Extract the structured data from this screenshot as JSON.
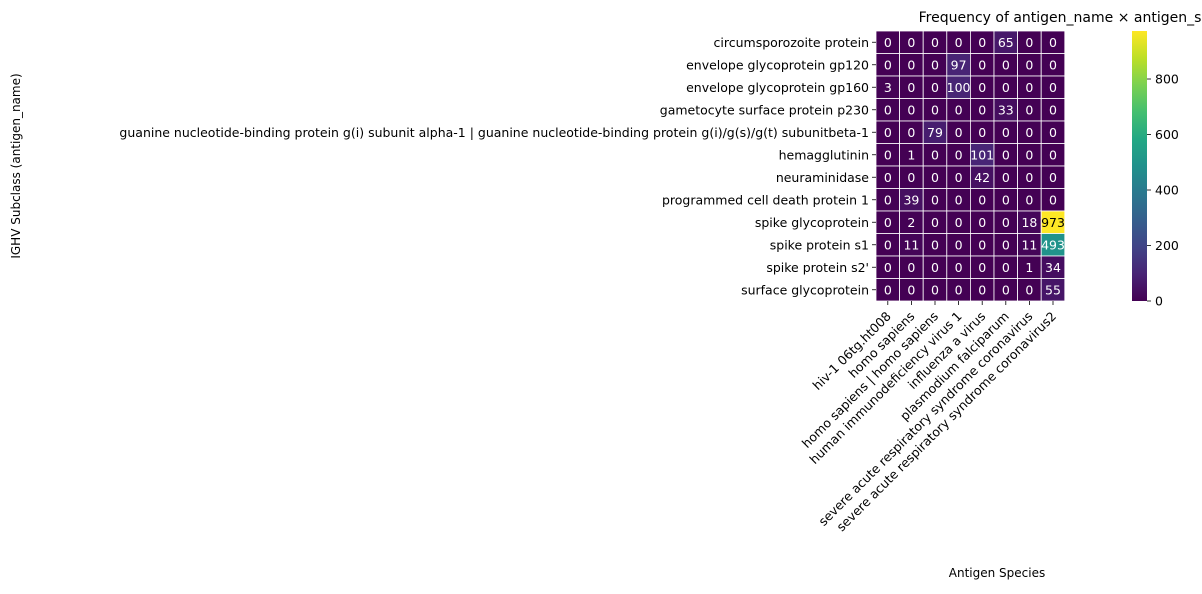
{
  "chart_data": {
    "type": "heatmap",
    "title": "Frequency of antigen_name × antigen_species",
    "xlabel": "Antigen Species",
    "ylabel": "IGHV Subclass (antigen_name)",
    "x_categories": [
      "hiv-1 06tg.ht008",
      "homo sapiens",
      "homo sapiens | homo sapiens",
      "human immunodeficiency virus 1",
      "influenza a virus",
      "plasmodium falciparum",
      "severe acute respiratory syndrome coronavirus",
      "severe acute respiratory syndrome coronavirus2"
    ],
    "y_categories": [
      "circumsporozoite protein",
      "envelope glycoprotein gp120",
      "envelope glycoprotein gp160",
      "gametocyte surface protein p230",
      "guanine nucleotide-binding protein g(i) subunit alpha-1 | guanine nucleotide-binding protein g(i)/g(s)/g(t) subunitbeta-1",
      "hemagglutinin",
      "neuraminidase",
      "programmed cell death protein 1",
      "spike glycoprotein",
      "spike protein s1",
      "spike protein s2'",
      "surface glycoprotein"
    ],
    "values": [
      [
        0,
        0,
        0,
        0,
        0,
        65,
        0,
        0
      ],
      [
        0,
        0,
        0,
        97,
        0,
        0,
        0,
        0
      ],
      [
        3,
        0,
        0,
        100,
        0,
        0,
        0,
        0
      ],
      [
        0,
        0,
        0,
        0,
        0,
        33,
        0,
        0
      ],
      [
        0,
        0,
        79,
        0,
        0,
        0,
        0,
        0
      ],
      [
        0,
        1,
        0,
        0,
        101,
        0,
        0,
        0
      ],
      [
        0,
        0,
        0,
        0,
        42,
        0,
        0,
        0
      ],
      [
        0,
        39,
        0,
        0,
        0,
        0,
        0,
        0
      ],
      [
        0,
        2,
        0,
        0,
        0,
        0,
        18,
        973
      ],
      [
        0,
        11,
        0,
        0,
        0,
        0,
        11,
        493
      ],
      [
        0,
        0,
        0,
        0,
        0,
        0,
        1,
        34
      ],
      [
        0,
        0,
        0,
        0,
        0,
        0,
        0,
        55
      ]
    ],
    "colormap": "viridis",
    "color_range": [
      0,
      973
    ],
    "colorbar_ticks": [
      0,
      200,
      400,
      600,
      800
    ],
    "annotations": "cell values shown",
    "grid": false
  }
}
